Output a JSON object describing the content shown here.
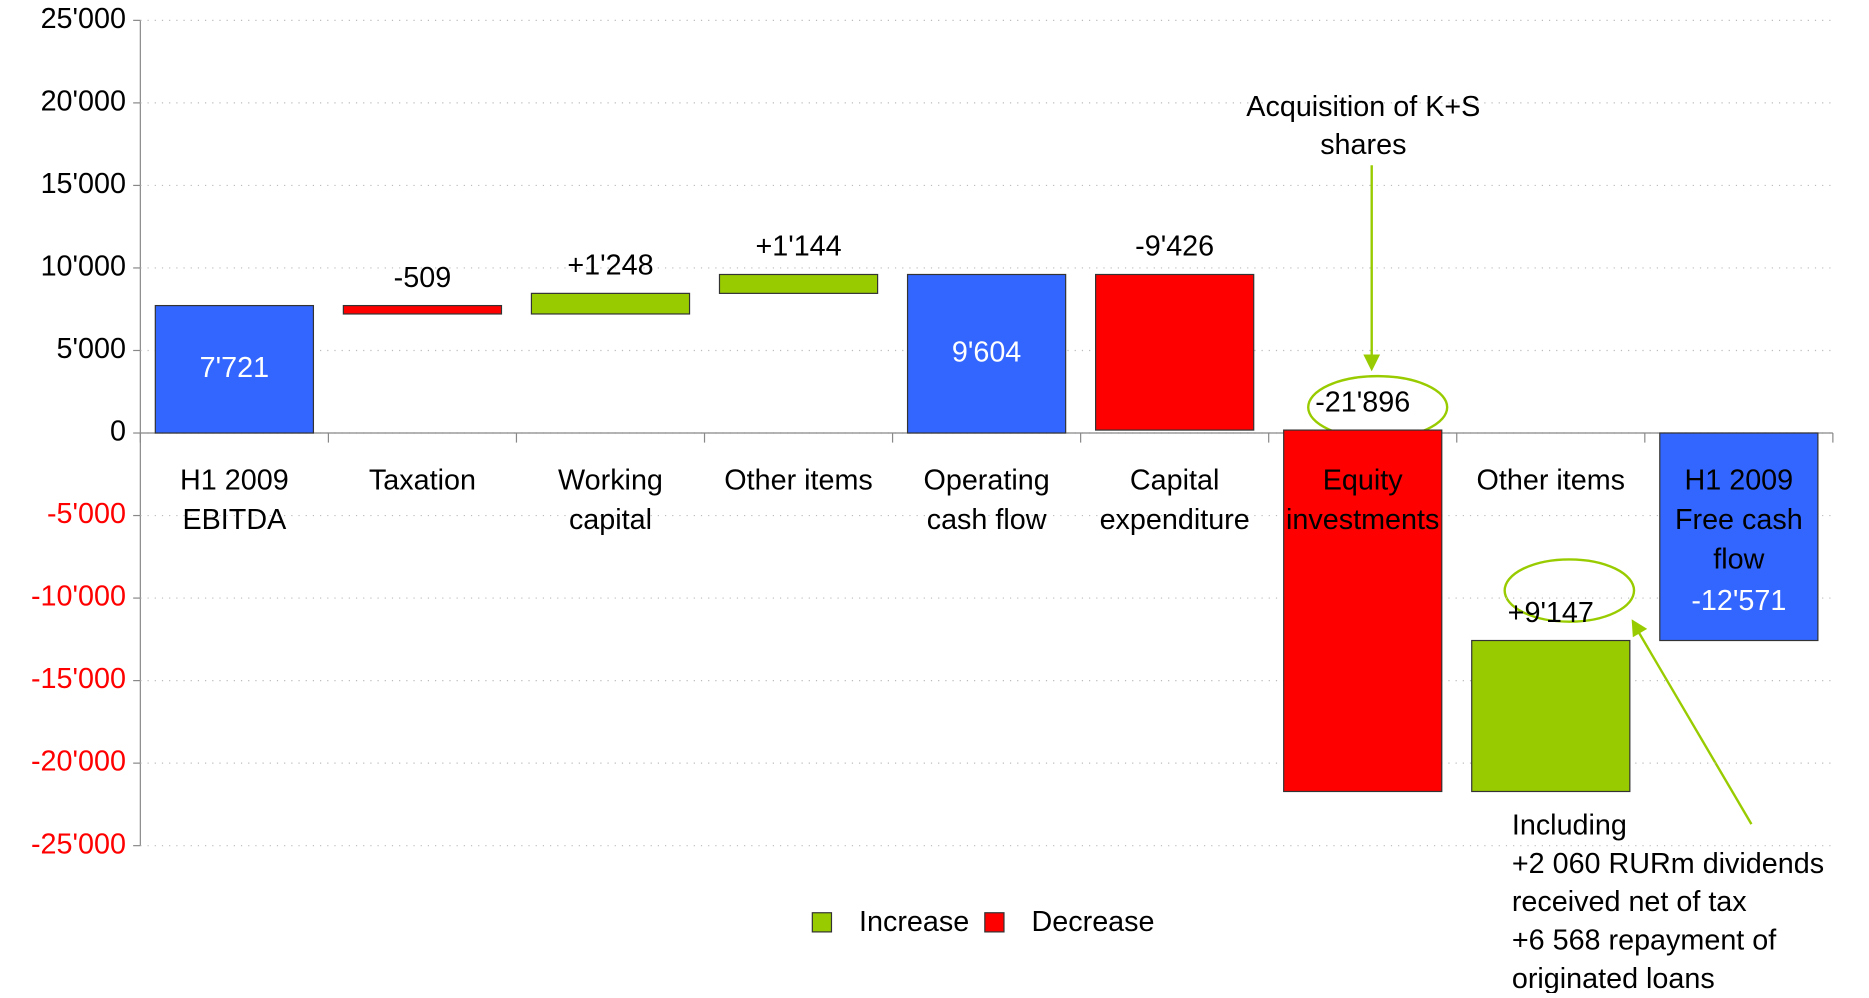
{
  "chart_data": {
    "type": "waterfall",
    "categories": [
      "H1 2009\nEBITDA",
      "Taxation",
      "Working\ncapital",
      "Other items",
      "Operating\ncash flow",
      "Capital\nexpenditure",
      "Equity\ninvestments",
      "Other items",
      "H1 2009\nFree cash\nflow"
    ],
    "values": [
      7721,
      -509,
      1248,
      1144,
      9604,
      -9426,
      -21896,
      9147,
      -12571
    ],
    "value_labels": [
      "7'721",
      "-509",
      "+1'248",
      "+1'144",
      "9'604",
      "-9'426",
      "-21'896",
      "+9'147",
      "-12'571"
    ],
    "measure": [
      "absolute",
      "relative",
      "relative",
      "relative",
      "absolute",
      "relative",
      "relative",
      "relative",
      "absolute"
    ],
    "bar_colors": [
      "#3366ff",
      "#ff0000",
      "#99cc00",
      "#99cc00",
      "#3366ff",
      "#ff0000",
      "#ff0000",
      "#99cc00",
      "#3366ff"
    ],
    "legend": [
      {
        "name": "Increase",
        "color": "#99cc00"
      },
      {
        "name": "Decrease",
        "color": "#ff0000"
      }
    ],
    "ylim": [
      -25000,
      25000
    ],
    "yticks": [
      {
        "value": 25000,
        "label": "25'000"
      },
      {
        "value": 20000,
        "label": "20'000"
      },
      {
        "value": 15000,
        "label": "15'000"
      },
      {
        "value": 10000,
        "label": "10'000"
      },
      {
        "value": 5000,
        "label": "5'000"
      },
      0,
      {
        "value": -5000,
        "label": "-5'000"
      },
      {
        "value": -10000,
        "label": "-10'000"
      },
      {
        "value": -15000,
        "label": "-15'000"
      },
      {
        "value": -20000,
        "label": "-20'000"
      },
      {
        "value": -25000,
        "label": "-25'000"
      }
    ],
    "negative_tick_color": "#ff0000",
    "grid": true,
    "annotations": [
      "Acquisition of K+S\nshares",
      "Including\n+2 060 RURm dividends\nreceived net of tax\n+6 568 repayment of\noriginated loans"
    ]
  }
}
